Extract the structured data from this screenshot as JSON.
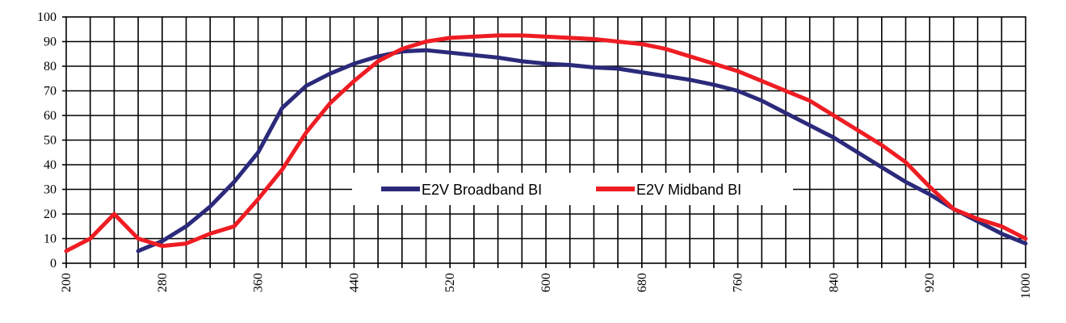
{
  "chart_data": {
    "type": "line",
    "title": "",
    "xlabel": "",
    "ylabel": "",
    "xlim": [
      200,
      1000
    ],
    "ylim": [
      0,
      100
    ],
    "x_tick_labels": [
      200,
      280,
      360,
      440,
      520,
      600,
      680,
      760,
      840,
      920,
      1000
    ],
    "y_tick_labels": [
      0,
      10,
      20,
      30,
      40,
      50,
      60,
      70,
      80,
      90,
      100
    ],
    "grid": true,
    "legend_position": "center-right",
    "series": [
      {
        "name": "E2V Broadband BI",
        "color": "#2b2a7a",
        "x": [
          260,
          280,
          300,
          320,
          340,
          360,
          380,
          400,
          420,
          440,
          460,
          480,
          500,
          520,
          540,
          560,
          580,
          600,
          620,
          640,
          660,
          680,
          700,
          720,
          740,
          760,
          780,
          800,
          820,
          840,
          860,
          880,
          900,
          920,
          940,
          960,
          980,
          1000
        ],
        "y": [
          5,
          9,
          15,
          23,
          33,
          45,
          63,
          72,
          77,
          81,
          84,
          86,
          86.5,
          85.5,
          84.5,
          83.5,
          82,
          81,
          80.5,
          79.5,
          79,
          77.5,
          76,
          74.5,
          72.5,
          70,
          66,
          61,
          56,
          51,
          45,
          39,
          33,
          28,
          22,
          17,
          12,
          8
        ]
      },
      {
        "name": "E2V Midband BI",
        "color": "#ee1d23",
        "x": [
          200,
          220,
          240,
          260,
          280,
          300,
          320,
          340,
          360,
          380,
          400,
          420,
          440,
          460,
          480,
          500,
          520,
          540,
          560,
          580,
          600,
          620,
          640,
          660,
          680,
          700,
          720,
          740,
          760,
          780,
          800,
          820,
          840,
          860,
          880,
          900,
          920,
          940,
          960,
          980,
          1000
        ],
        "y": [
          5,
          10,
          20,
          10,
          7,
          8,
          12,
          15,
          26,
          38,
          53,
          65,
          74,
          82,
          87,
          90,
          91.5,
          92,
          92.5,
          92.5,
          92,
          91.5,
          91,
          90,
          89,
          87,
          84,
          81,
          78,
          74,
          70,
          66,
          60,
          54,
          48,
          41,
          31,
          22,
          18,
          15,
          10
        ]
      }
    ]
  }
}
